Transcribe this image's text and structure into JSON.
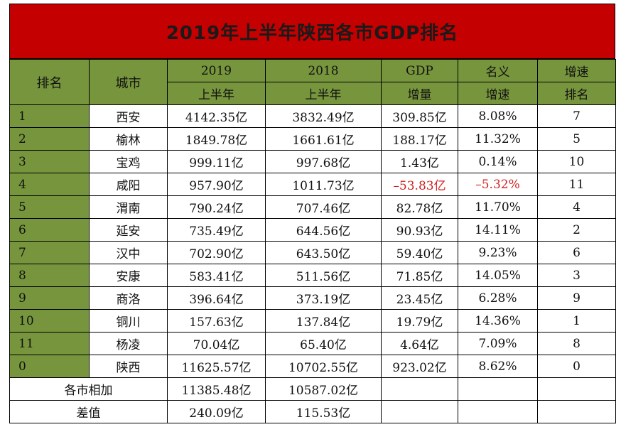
{
  "title": "2019年上半年陕西各市GDP排名",
  "header": {
    "rank": "排名",
    "city": "城市",
    "y2019_top": "2019",
    "y2019_bottom": "上半年",
    "y2018_top": "2018",
    "y2018_bottom": "上半年",
    "gdp_top": "GDP",
    "gdp_bottom": "增量",
    "nominal_top": "名义",
    "nominal_bottom": "增速",
    "growth_rank_top": "增速",
    "growth_rank_bottom": "排名"
  },
  "rows": [
    {
      "rank": "1",
      "city": "西安",
      "y2019": "4142.35亿",
      "y2018": "3832.49亿",
      "increment": "309.85亿",
      "growth": "8.08%",
      "growth_rank": "7",
      "negative": false
    },
    {
      "rank": "2",
      "city": "榆林",
      "y2019": "1849.78亿",
      "y2018": "1661.61亿",
      "increment": "188.17亿",
      "growth": "11.32%",
      "growth_rank": "5",
      "negative": false
    },
    {
      "rank": "3",
      "city": "宝鸡",
      "y2019": "999.11亿",
      "y2018": "997.68亿",
      "increment": "1.43亿",
      "growth": "0.14%",
      "growth_rank": "10",
      "negative": false
    },
    {
      "rank": "4",
      "city": "咸阳",
      "y2019": "957.90亿",
      "y2018": "1011.73亿",
      "increment": "–53.83亿",
      "growth": "–5.32%",
      "growth_rank": "11",
      "negative": true
    },
    {
      "rank": "5",
      "city": "渭南",
      "y2019": "790.24亿",
      "y2018": "707.46亿",
      "increment": "82.78亿",
      "growth": "11.70%",
      "growth_rank": "4",
      "negative": false
    },
    {
      "rank": "6",
      "city": "延安",
      "y2019": "735.49亿",
      "y2018": "644.56亿",
      "increment": "90.93亿",
      "growth": "14.11%",
      "growth_rank": "2",
      "negative": false
    },
    {
      "rank": "7",
      "city": "汉中",
      "y2019": "702.90亿",
      "y2018": "643.50亿",
      "increment": "59.40亿",
      "growth": "9.23%",
      "growth_rank": "6",
      "negative": false
    },
    {
      "rank": "8",
      "city": "安康",
      "y2019": "583.41亿",
      "y2018": "511.56亿",
      "increment": "71.85亿",
      "growth": "14.05%",
      "growth_rank": "3",
      "negative": false
    },
    {
      "rank": "9",
      "city": "商洛",
      "y2019": "396.64亿",
      "y2018": "373.19亿",
      "increment": "23.45亿",
      "growth": "6.28%",
      "growth_rank": "9",
      "negative": false
    },
    {
      "rank": "10",
      "city": "铜川",
      "y2019": "157.63亿",
      "y2018": "137.84亿",
      "increment": "19.79亿",
      "growth": "14.36%",
      "growth_rank": "1",
      "negative": false
    },
    {
      "rank": "11",
      "city": "杨凌",
      "y2019": "70.04亿",
      "y2018": "65.40亿",
      "increment": "4.64亿",
      "growth": "7.09%",
      "growth_rank": "8",
      "negative": false
    },
    {
      "rank": "0",
      "city": "陕西",
      "y2019": "11625.57亿",
      "y2018": "10702.55亿",
      "increment": "923.02亿",
      "growth": "8.62%",
      "growth_rank": "0",
      "negative": false
    }
  ],
  "sum_row": {
    "label": "各市相加",
    "y2019": "11385.48亿",
    "y2018": "10587.02亿"
  },
  "diff_row": {
    "label": "差值",
    "y2019": "240.09亿",
    "y2018": "115.53亿"
  },
  "colors": {
    "title_bg": "#c40000",
    "header_bg": "#77953c",
    "negative": "#d12020"
  }
}
